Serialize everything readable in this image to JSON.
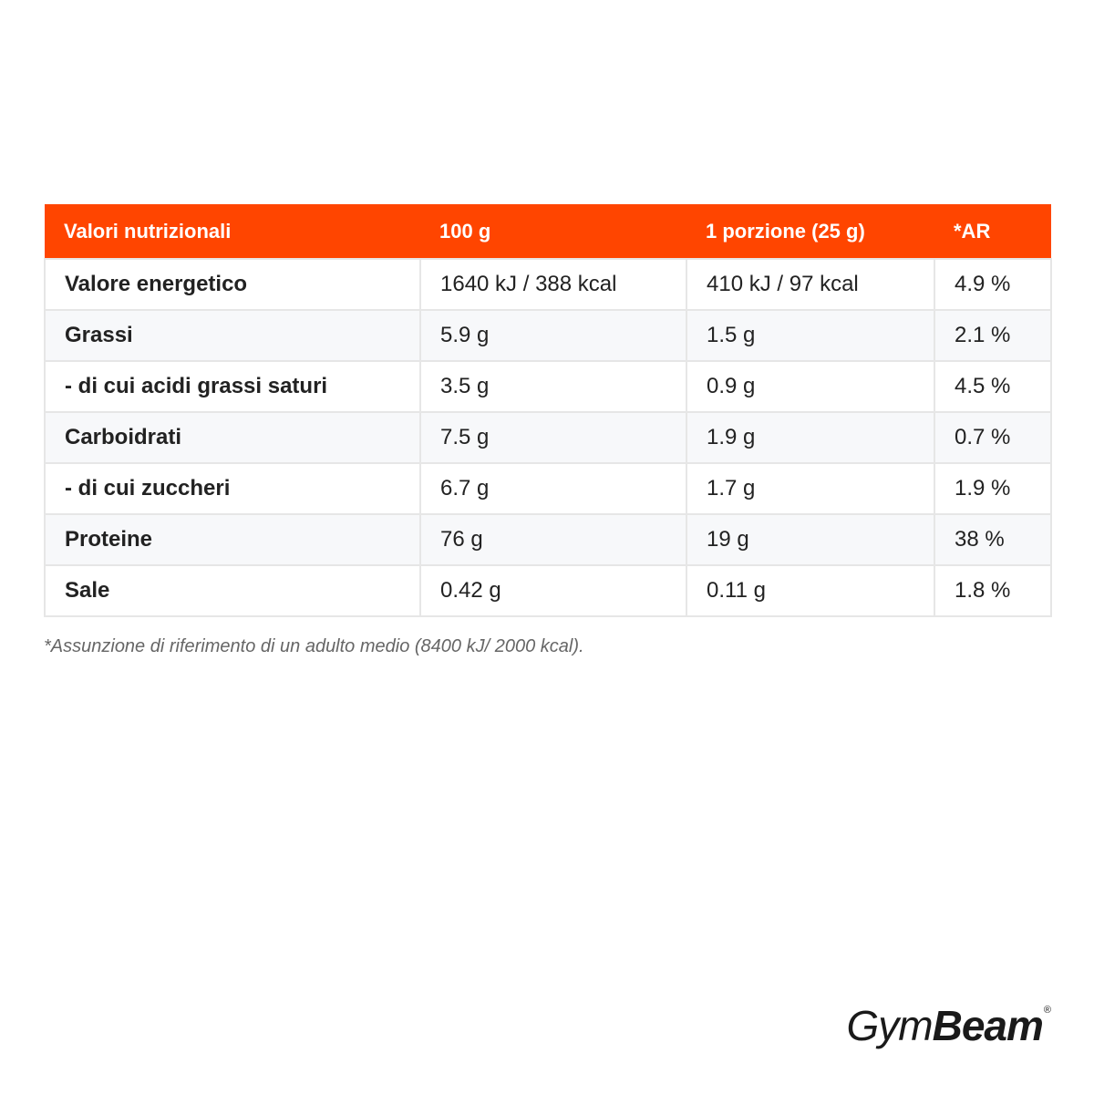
{
  "table": {
    "headers": [
      "Valori nutrizionali",
      "100 g",
      "1 porzione (25 g)",
      "*AR"
    ],
    "rows": [
      {
        "label": "Valore energetico",
        "per_100g": "1640 kJ / 388 kcal",
        "per_portion": "410 kJ / 97 kcal",
        "ar": "4.9 %"
      },
      {
        "label": "Grassi",
        "per_100g": "5.9 g",
        "per_portion": "1.5 g",
        "ar": "2.1 %"
      },
      {
        "label": "- di cui acidi grassi saturi",
        "per_100g": "3.5 g",
        "per_portion": "0.9 g",
        "ar": "4.5 %"
      },
      {
        "label": "Carboidrati",
        "per_100g": "7.5 g",
        "per_portion": "1.9 g",
        "ar": "0.7 %"
      },
      {
        "label": "- di cui zuccheri",
        "per_100g": "6.7 g",
        "per_portion": "1.7 g",
        "ar": "1.9 %"
      },
      {
        "label": "Proteine",
        "per_100g": "76 g",
        "per_portion": "19 g",
        "ar": "38 %"
      },
      {
        "label": "Sale",
        "per_100g": "0.42 g",
        "per_portion": "0.11 g",
        "ar": "1.8 %"
      }
    ]
  },
  "footnote": "*Assunzione di riferimento di un adulto medio (8400 kJ/ 2000 kcal).",
  "logo": {
    "part_light": "Gym",
    "part_bold": "Beam",
    "registered": "®"
  },
  "colors": {
    "header_background": "#ff4500",
    "header_text": "#ffffff",
    "border": "#e6e6e6",
    "alt_row": "#f7f8fa"
  }
}
